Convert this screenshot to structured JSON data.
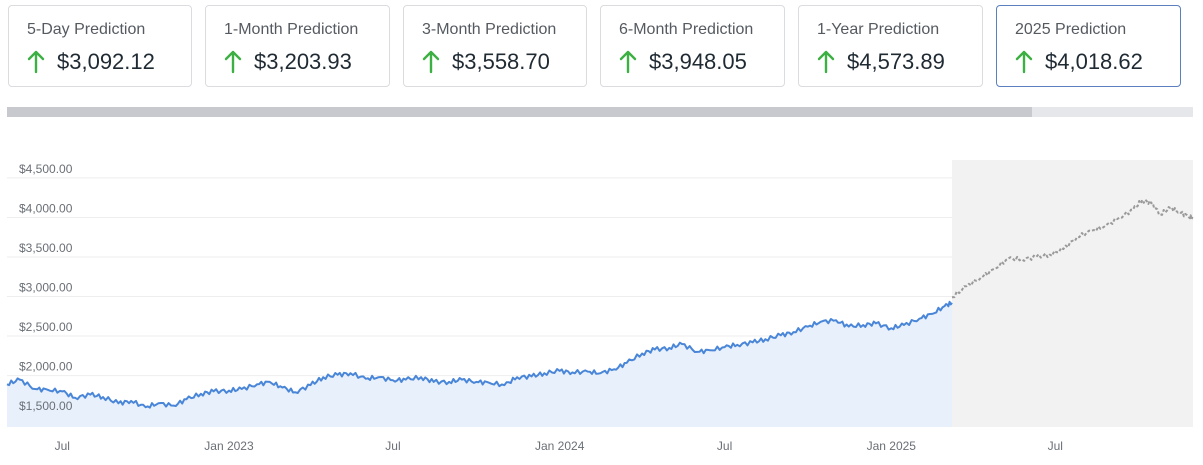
{
  "cards": [
    {
      "label": "5-Day Prediction",
      "value": "$3,092.12",
      "direction": "up",
      "selected": false
    },
    {
      "label": "1-Month Prediction",
      "value": "$3,203.93",
      "direction": "up",
      "selected": false
    },
    {
      "label": "3-Month Prediction",
      "value": "$3,558.70",
      "direction": "up",
      "selected": false
    },
    {
      "label": "6-Month Prediction",
      "value": "$3,948.05",
      "direction": "up",
      "selected": false
    },
    {
      "label": "1-Year Prediction",
      "value": "$4,573.89",
      "direction": "up",
      "selected": false
    },
    {
      "label": "2025 Prediction",
      "value": "$4,018.62",
      "direction": "up",
      "selected": true
    }
  ],
  "colors": {
    "up_arrow": "#3cb043",
    "historical_line": "#4a86d8",
    "historical_fill": "#e8f0fb",
    "forecast_line": "#9a9a9a",
    "forecast_bg": "#f2f2f2",
    "grid": "#eeeeee",
    "card_selected_border": "#5b7fbf"
  },
  "chart_data": {
    "type": "line",
    "title": "",
    "xlabel": "",
    "ylabel": "",
    "ylim": [
      1350,
      4600
    ],
    "xlim": [
      "2022-05-01",
      "2025-11-30"
    ],
    "y_ticks": [
      1500,
      2000,
      2500,
      3000,
      3500,
      4000,
      4500
    ],
    "y_tick_labels": [
      "$1,500.00",
      "$2,000.00",
      "$2,500.00",
      "$3,000.00",
      "$3,500.00",
      "$4,000.00",
      "$4,500.00"
    ],
    "x_ticks": [
      "2022-07-01",
      "2023-01-01",
      "2023-07-01",
      "2024-01-01",
      "2024-07-01",
      "2025-01-01",
      "2025-07-01"
    ],
    "x_tick_labels": [
      "Jul",
      "Jan 2023",
      "Jul",
      "Jan 2024",
      "Jul",
      "Jan 2025",
      "Jul"
    ],
    "grid": true,
    "legend": "none",
    "forecast_start": "2025-03-09",
    "series": [
      {
        "kind": "historical",
        "x": [
          "2022-05-01",
          "2022-05-15",
          "2022-06-01",
          "2022-06-15",
          "2022-07-01",
          "2022-07-15",
          "2022-08-01",
          "2022-08-15",
          "2022-09-01",
          "2022-09-15",
          "2022-10-01",
          "2022-10-15",
          "2022-11-01",
          "2022-11-15",
          "2022-12-01",
          "2022-12-15",
          "2023-01-01",
          "2023-01-15",
          "2023-02-01",
          "2023-02-15",
          "2023-03-01",
          "2023-03-15",
          "2023-04-01",
          "2023-04-15",
          "2023-05-01",
          "2023-05-15",
          "2023-06-01",
          "2023-06-15",
          "2023-07-01",
          "2023-07-15",
          "2023-08-01",
          "2023-08-15",
          "2023-09-01",
          "2023-09-15",
          "2023-10-01",
          "2023-10-15",
          "2023-11-01",
          "2023-11-15",
          "2023-12-01",
          "2023-12-15",
          "2024-01-01",
          "2024-01-15",
          "2024-02-01",
          "2024-02-15",
          "2024-03-01",
          "2024-03-15",
          "2024-04-01",
          "2024-04-15",
          "2024-05-01",
          "2024-05-15",
          "2024-06-01",
          "2024-06-15",
          "2024-07-01",
          "2024-07-15",
          "2024-08-01",
          "2024-08-15",
          "2024-09-01",
          "2024-09-15",
          "2024-10-01",
          "2024-10-15",
          "2024-11-01",
          "2024-11-15",
          "2024-12-01",
          "2024-12-15",
          "2025-01-01",
          "2025-01-15",
          "2025-02-01",
          "2025-02-15",
          "2025-03-01",
          "2025-03-09"
        ],
        "y": [
          1890,
          1950,
          1830,
          1820,
          1800,
          1720,
          1760,
          1730,
          1650,
          1680,
          1600,
          1650,
          1620,
          1700,
          1770,
          1800,
          1810,
          1830,
          1890,
          1920,
          1850,
          1790,
          1880,
          1980,
          2010,
          2030,
          1960,
          1980,
          1940,
          1950,
          1980,
          1920,
          1920,
          1950,
          1920,
          1910,
          1880,
          1980,
          1990,
          2030,
          2060,
          2040,
          2050,
          2030,
          2080,
          2160,
          2280,
          2330,
          2350,
          2400,
          2300,
          2320,
          2360,
          2390,
          2420,
          2460,
          2510,
          2550,
          2620,
          2680,
          2700,
          2620,
          2640,
          2660,
          2600,
          2640,
          2720,
          2780,
          2880,
          2920
        ]
      },
      {
        "kind": "forecast",
        "x": [
          "2025-03-09",
          "2025-03-25",
          "2025-04-10",
          "2025-04-25",
          "2025-05-10",
          "2025-05-25",
          "2025-06-10",
          "2025-06-25",
          "2025-07-10",
          "2025-07-25",
          "2025-08-10",
          "2025-08-25",
          "2025-09-10",
          "2025-09-25",
          "2025-10-05",
          "2025-10-15",
          "2025-10-25",
          "2025-11-05",
          "2025-11-15",
          "2025-11-25",
          "2025-11-30"
        ],
        "y": [
          2990,
          3130,
          3240,
          3350,
          3480,
          3470,
          3500,
          3530,
          3600,
          3750,
          3830,
          3890,
          4000,
          4100,
          4220,
          4180,
          4040,
          4120,
          4070,
          4010,
          3990
        ]
      }
    ]
  }
}
